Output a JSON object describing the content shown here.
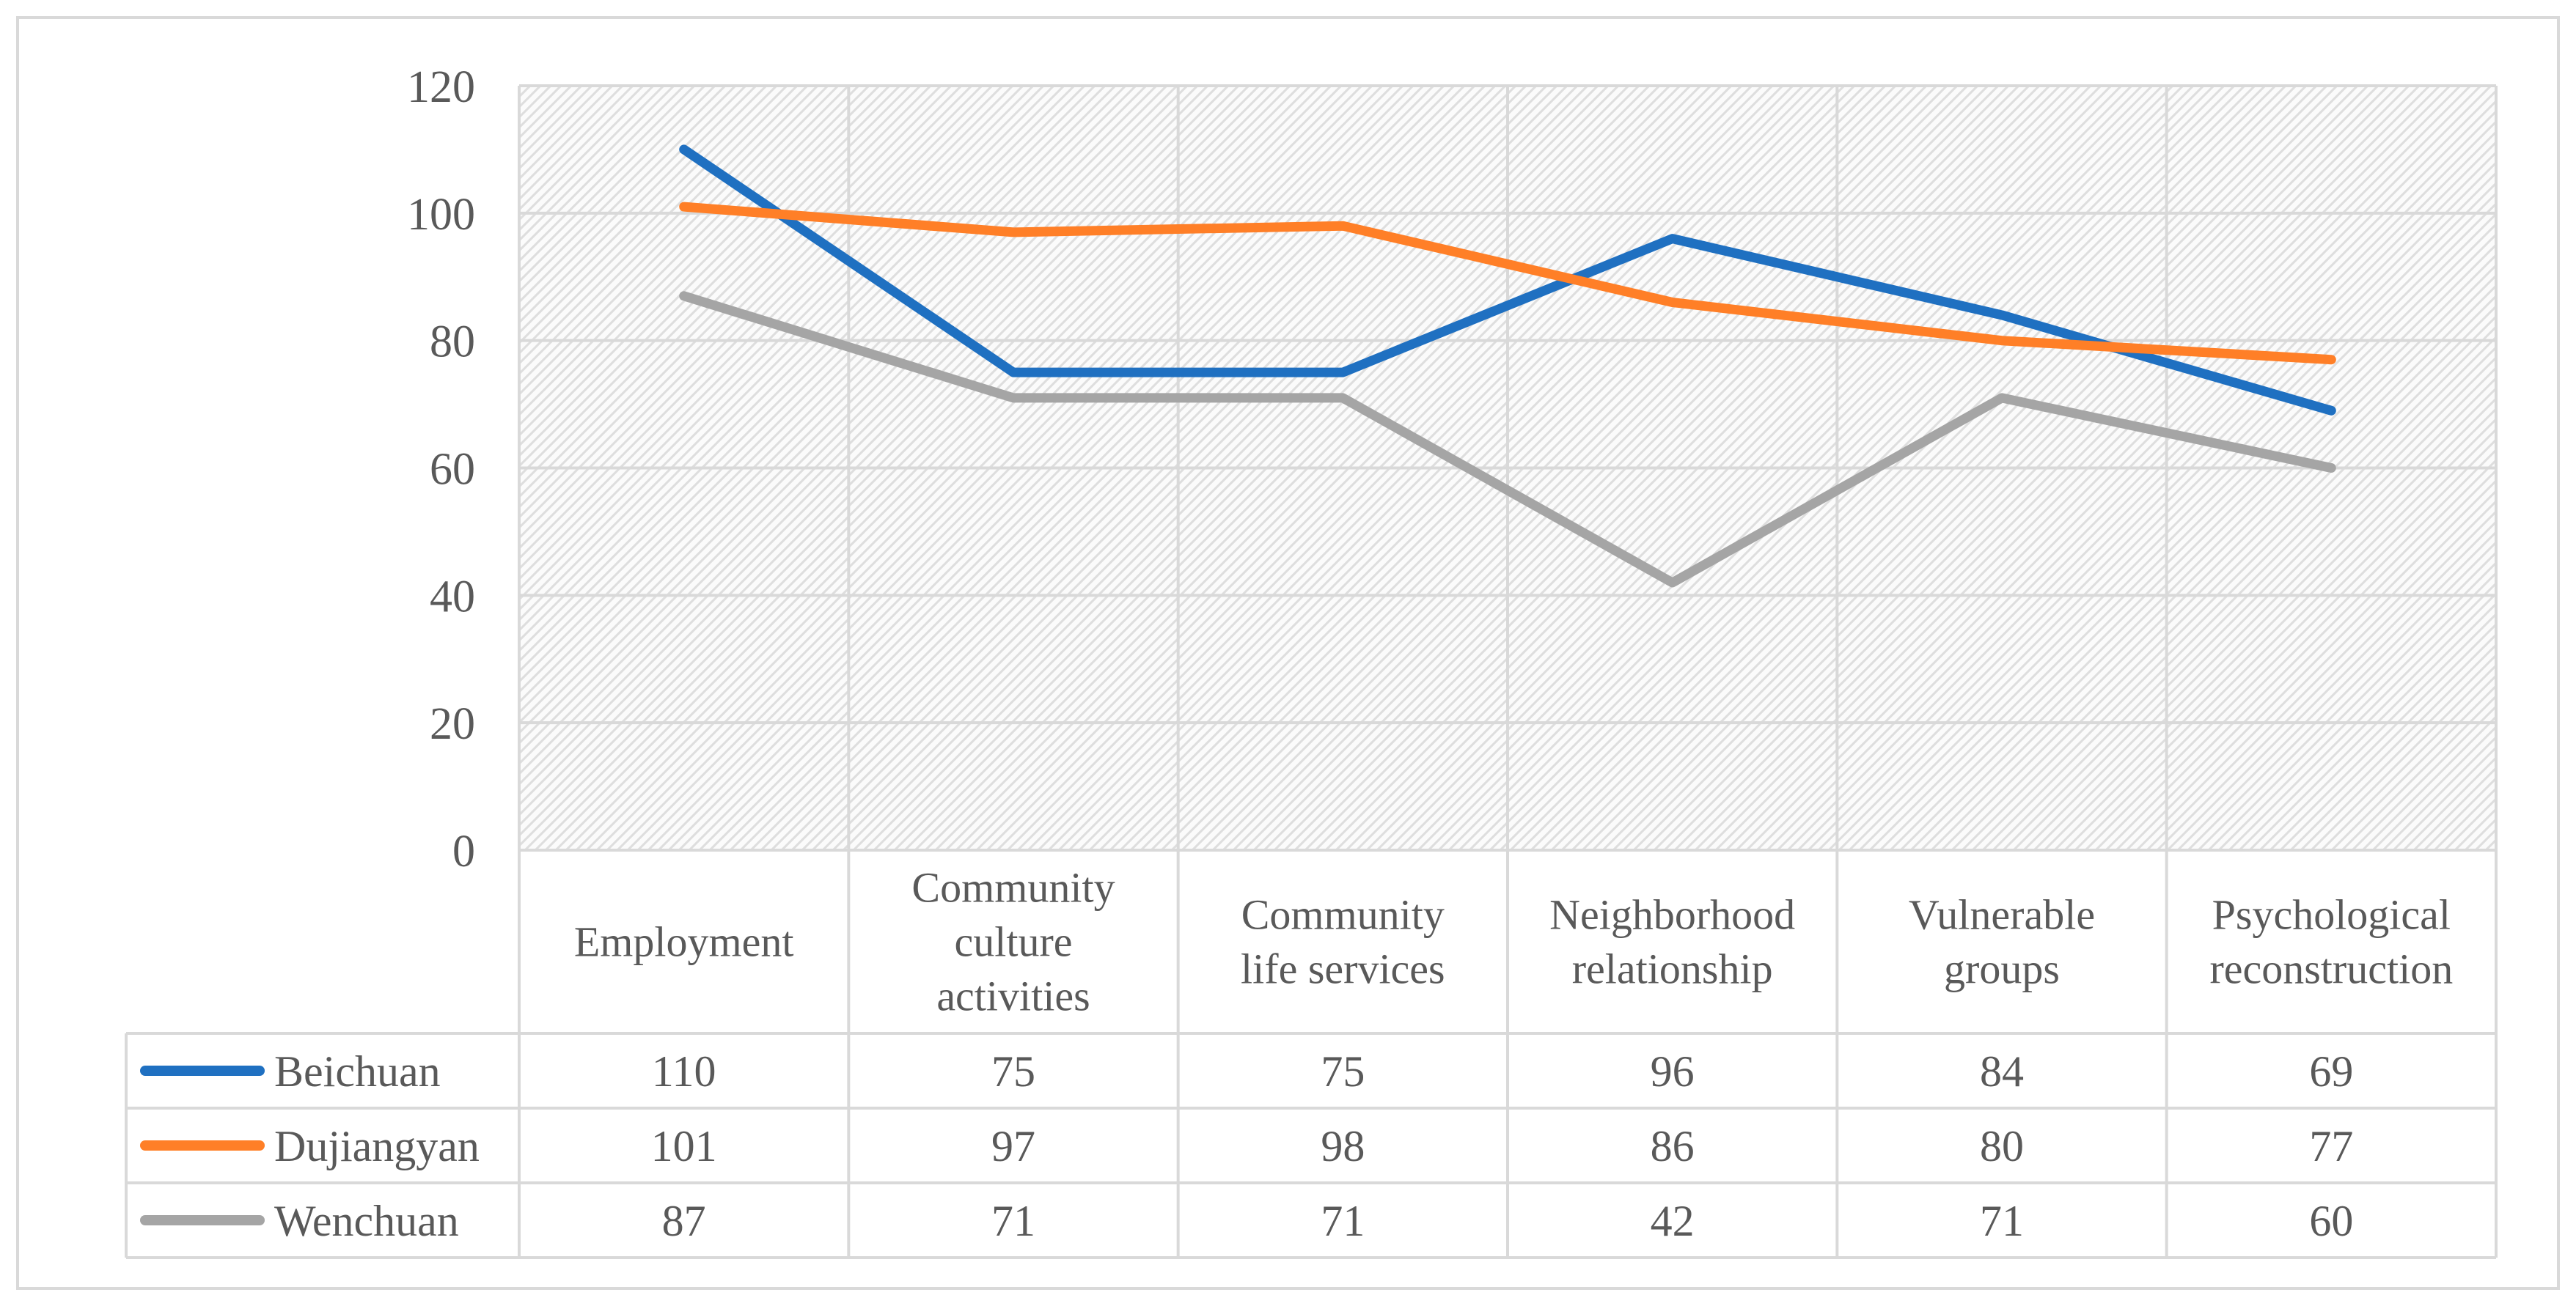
{
  "chart_data": {
    "type": "line",
    "title": "",
    "xlabel": "",
    "ylabel": "",
    "ylim": [
      0,
      120
    ],
    "yticks": [
      0,
      20,
      40,
      60,
      80,
      100,
      120
    ],
    "grid": true,
    "legend": "data-table-left",
    "categories": [
      [
        "Employment"
      ],
      [
        "Community",
        "culture",
        "activities"
      ],
      [
        "Community",
        "life services"
      ],
      [
        "Neighborhood",
        "relationship"
      ],
      [
        "Vulnerable",
        "groups"
      ],
      [
        "Psychological",
        "reconstruction"
      ]
    ],
    "series": [
      {
        "name": "Beichuan",
        "color": "#1f70c1",
        "values": [
          110,
          75,
          75,
          96,
          84,
          69
        ]
      },
      {
        "name": "Dujiangyan",
        "color": "#ff7f27",
        "values": [
          101,
          97,
          98,
          86,
          80,
          77
        ]
      },
      {
        "name": "Wenchuan",
        "color": "#a5a5a5",
        "values": [
          87,
          71,
          71,
          42,
          71,
          60
        ]
      }
    ]
  }
}
